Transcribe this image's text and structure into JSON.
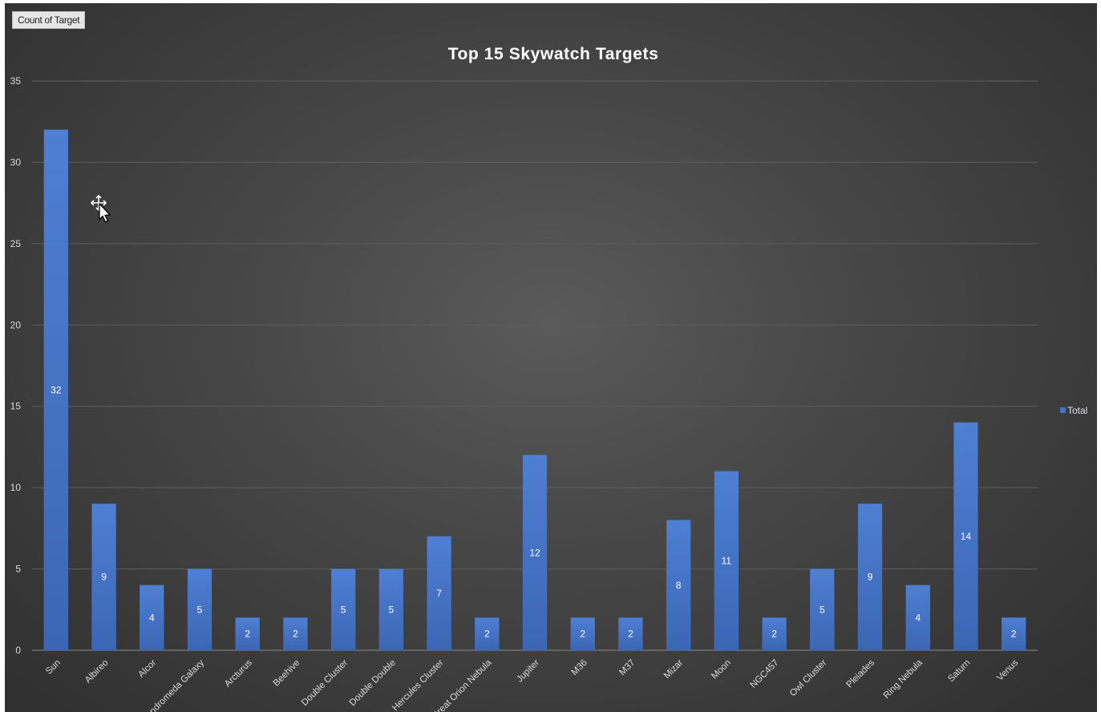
{
  "pivot_field_button": "Count of Target",
  "colors": {
    "bar": "#4472c4",
    "title": "#ffffff",
    "gridline": "#5e5e5e",
    "axis_text": "#d9d9d9"
  },
  "chart_data": {
    "type": "bar",
    "title": "Top 15 Skywatch Targets",
    "xlabel": "",
    "ylabel": "",
    "ylim": [
      0,
      35
    ],
    "yticks": [
      0,
      5,
      10,
      15,
      20,
      25,
      30,
      35
    ],
    "grid": true,
    "legend_position": "right",
    "data_labels": true,
    "categories": [
      "Sun",
      "Albireo",
      "Alcor",
      "Andromeda Galaxy",
      "Arcturus",
      "Beehive",
      "Double Cluster",
      "Double Double",
      "Hercules Cluster",
      "Great Orion Nebula",
      "Jupiter",
      "M36",
      "M37",
      "Mizar",
      "Moon",
      "NGC457",
      "Owl Cluster",
      "Pleiades",
      "Ring Nebula",
      "Saturn",
      "Venus"
    ],
    "series": [
      {
        "name": "Total",
        "values": [
          32,
          9,
          4,
          5,
          2,
          2,
          5,
          5,
          7,
          2,
          12,
          2,
          2,
          8,
          11,
          2,
          5,
          9,
          4,
          14,
          2
        ]
      }
    ]
  }
}
